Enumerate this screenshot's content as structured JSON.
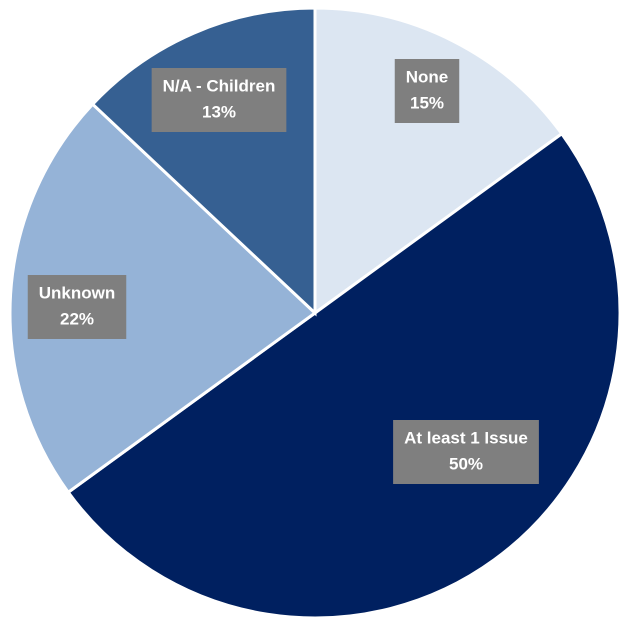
{
  "chart_data": {
    "type": "pie",
    "categories": [
      "None",
      "At least 1 Issue",
      "Unknown",
      "N/A - Children"
    ],
    "values": [
      15,
      50,
      22,
      13
    ],
    "value_labels": [
      "15%",
      "50%",
      "22%",
      "13%"
    ],
    "colors": [
      "#dce6f2",
      "#002060",
      "#95b3d7",
      "#366092"
    ]
  }
}
